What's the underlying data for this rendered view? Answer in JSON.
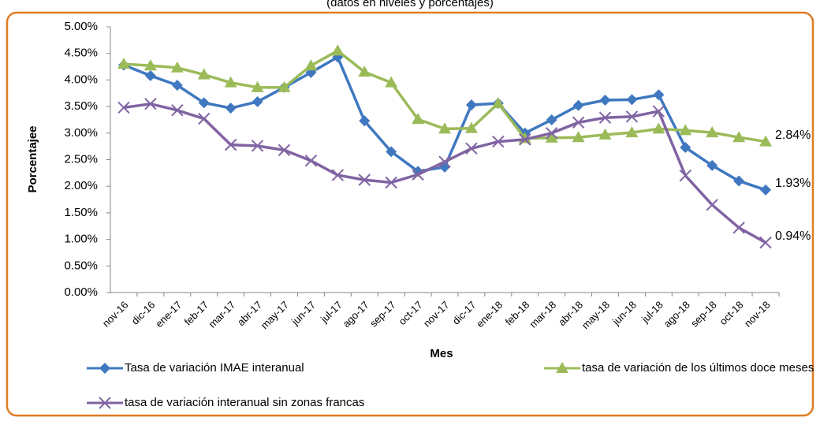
{
  "chart_data": {
    "type": "line",
    "subtitle": "(datos en niveles y porcentajes)",
    "y_label": "Porcentajee",
    "x_label": "Mes",
    "categories": [
      "nov-16",
      "dic-16",
      "ene-17",
      "feb-17",
      "mar-17",
      "abr-17",
      "may-17",
      "jun-17",
      "jul-17",
      "ago-17",
      "sep-17",
      "oct-17",
      "nov-17",
      "dic-17",
      "ene-18",
      "feb-18",
      "mar-18",
      "abr-18",
      "may-18",
      "jun-18",
      "jul-18",
      "ago-18",
      "sep-18",
      "oct-18",
      "nov-18"
    ],
    "series": [
      {
        "name": "Tasa de variación IMAE interanual",
        "color": "#3f78c0",
        "marker": "diamond",
        "values": [
          4.28,
          4.08,
          3.9,
          3.57,
          3.47,
          3.59,
          3.86,
          4.14,
          4.43,
          3.23,
          2.65,
          2.28,
          2.36,
          3.53,
          3.56,
          3.0,
          3.25,
          3.52,
          3.62,
          3.63,
          3.72,
          2.73,
          2.39,
          2.1,
          1.93
        ],
        "value_labels": [
          null,
          null,
          null,
          null,
          null,
          null,
          null,
          null,
          null,
          null,
          null,
          null,
          null,
          null,
          null,
          null,
          null,
          null,
          null,
          null,
          null,
          null,
          null,
          null,
          "1.93%"
        ]
      },
      {
        "name": "tasa de variación de los últimos doce meses",
        "color": "#9bbb59",
        "marker": "triangle",
        "values": [
          4.3,
          4.27,
          4.23,
          4.1,
          3.95,
          3.86,
          3.86,
          4.27,
          4.55,
          4.15,
          3.95,
          3.26,
          3.08,
          3.09,
          3.56,
          2.9,
          2.91,
          2.92,
          2.97,
          3.01,
          3.08,
          3.05,
          3.01,
          2.92,
          2.84
        ],
        "value_labels": [
          null,
          null,
          null,
          null,
          null,
          null,
          null,
          null,
          null,
          null,
          null,
          null,
          null,
          null,
          null,
          null,
          null,
          null,
          null,
          null,
          null,
          null,
          null,
          null,
          "2.84%"
        ]
      },
      {
        "name": "tasa de variación interanual sin zonas francas",
        "color": "#8064a2",
        "marker": "x",
        "values": [
          3.48,
          3.55,
          3.43,
          3.27,
          2.78,
          2.76,
          2.68,
          2.48,
          2.21,
          2.12,
          2.07,
          2.22,
          2.46,
          2.71,
          2.84,
          2.88,
          3.0,
          3.2,
          3.29,
          3.31,
          3.41,
          2.2,
          1.65,
          1.22,
          0.94
        ],
        "value_labels": [
          null,
          null,
          null,
          null,
          null,
          null,
          null,
          null,
          null,
          null,
          null,
          null,
          null,
          null,
          null,
          null,
          null,
          null,
          null,
          null,
          null,
          null,
          null,
          null,
          "0.94%"
        ]
      }
    ],
    "ylim": [
      0,
      5
    ],
    "yticks": [
      {
        "value": 0,
        "label": "0.00%"
      },
      {
        "value": 0.5,
        "label": "0.50%"
      },
      {
        "value": 1,
        "label": "1.00%"
      },
      {
        "value": 1.5,
        "label": "1.50%"
      },
      {
        "value": 2,
        "label": "2.00%"
      },
      {
        "value": 2.5,
        "label": "2.50%"
      },
      {
        "value": 3,
        "label": "3.00%"
      },
      {
        "value": 3.5,
        "label": "3.50%"
      },
      {
        "value": 4,
        "label": "4.00%"
      },
      {
        "value": 4.5,
        "label": "4.50%"
      },
      {
        "value": 5,
        "label": "5.00%"
      }
    ],
    "grid": false
  }
}
